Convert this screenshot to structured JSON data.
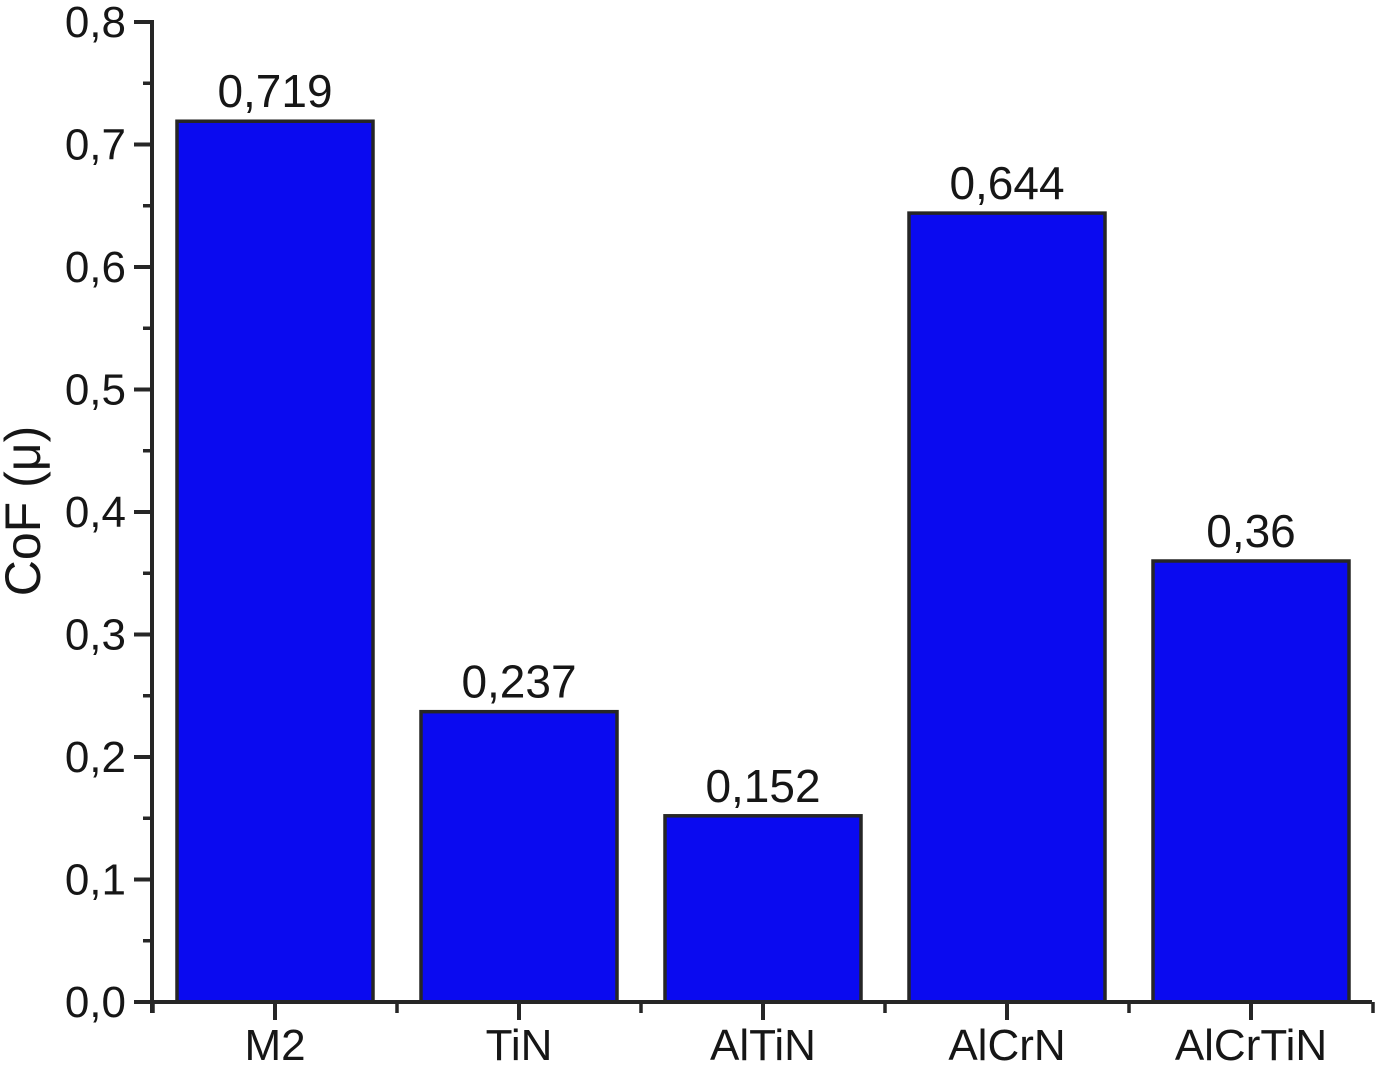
{
  "figure": {
    "background_color": "#ffffff"
  },
  "chart_data": {
    "type": "bar",
    "title": "",
    "xlabel": "",
    "ylabel": "CoF (μ)",
    "categories": [
      "M2",
      "TiN",
      "AlTiN",
      "AlCrN",
      "AlCrTiN"
    ],
    "values": [
      0.719,
      0.237,
      0.152,
      0.644,
      0.36
    ],
    "value_labels": [
      "0,719",
      "0,237",
      "0,152",
      "0,644",
      "0,36"
    ],
    "ylim": [
      0.0,
      0.8
    ],
    "ytick_major_step": 0.1,
    "ytick_minor_step": 0.05,
    "ytick_labels": [
      "0,0",
      "0,1",
      "0,2",
      "0,3",
      "0,4",
      "0,5",
      "0,6",
      "0,7",
      "0,8"
    ],
    "grid": false,
    "legend": null,
    "decimal_separator": ",",
    "bar_fill_color": "#0a0af0",
    "bar_edge_color": "#262626",
    "axis_color": "#262626",
    "text_color": "#161616"
  }
}
